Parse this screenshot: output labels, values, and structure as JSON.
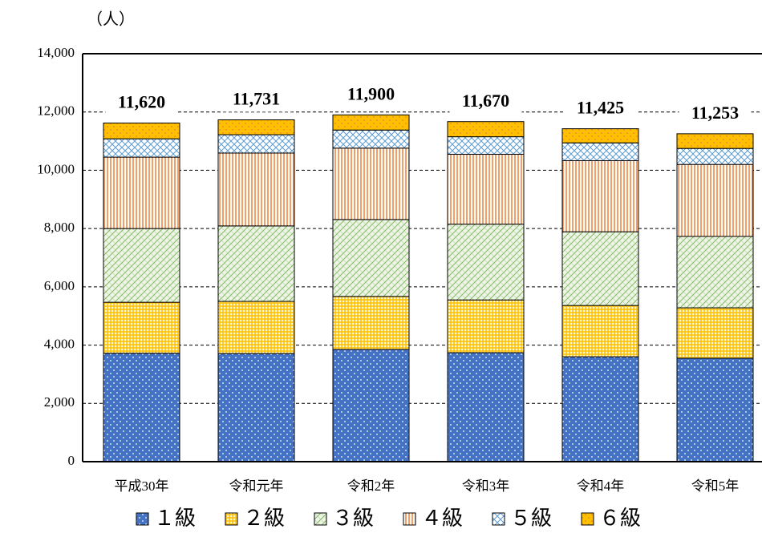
{
  "chart_data": {
    "type": "stacked_bar",
    "y_label": "（人）",
    "categories": [
      "平成30年",
      "令和元年",
      "令和2年",
      "令和3年",
      "令和4年",
      "令和5年"
    ],
    "series": [
      {
        "name": "１級",
        "color": "#4472c4",
        "values": [
          3720,
          3710,
          3850,
          3740,
          3600,
          3550
        ]
      },
      {
        "name": "２級",
        "color": "#ffc000",
        "values": [
          1750,
          1790,
          1820,
          1810,
          1760,
          1730
        ]
      },
      {
        "name": "３級",
        "color": "#70ad47",
        "values": [
          2530,
          2590,
          2640,
          2600,
          2530,
          2450
        ]
      },
      {
        "name": "４級",
        "color": "#ed7d31",
        "values": [
          2450,
          2500,
          2450,
          2400,
          2440,
          2470
        ]
      },
      {
        "name": "５級",
        "color": "#5b9bd5",
        "values": [
          630,
          630,
          620,
          600,
          610,
          550
        ]
      },
      {
        "name": "６級",
        "color": "#ffc000",
        "values": [
          540,
          511,
          520,
          520,
          485,
          503
        ]
      }
    ],
    "totals": [
      11620,
      11731,
      11900,
      11670,
      11425,
      11253
    ],
    "total_labels": [
      "11,620",
      "11,731",
      "11,900",
      "11,670",
      "11,425",
      "11,253"
    ],
    "ylim": [
      0,
      14000
    ],
    "yticks": [
      0,
      {
        "value": 2000,
        "label": "2,000"
      },
      {
        "value": 4000,
        "label": "4,000"
      },
      {
        "value": 6000,
        "label": "6,000"
      },
      {
        "value": 8000,
        "label": "8,000"
      },
      {
        "value": 10000,
        "label": "10,000"
      },
      {
        "value": 12000,
        "label": "12,000"
      },
      {
        "value": 14000,
        "label": "14,000"
      }
    ],
    "grid": true
  }
}
